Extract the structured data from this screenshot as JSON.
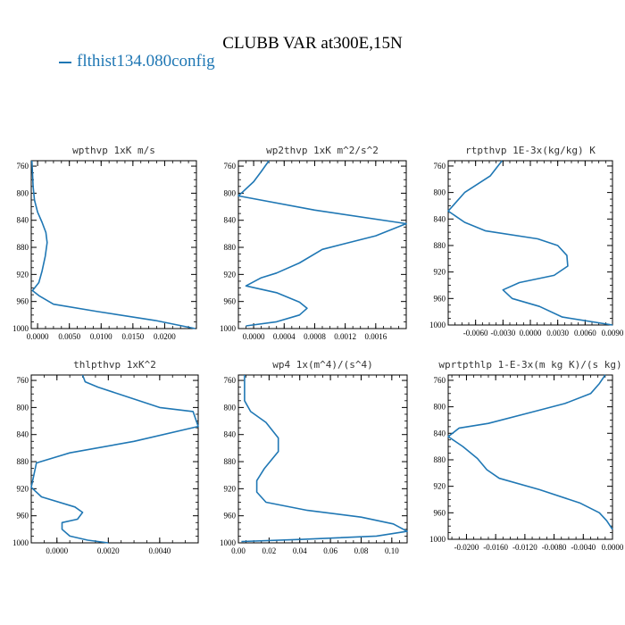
{
  "figure": {
    "title": "CLUBB VAR at300E,15N",
    "legend": "flthist134.080config",
    "line_color": "#1f77b4"
  },
  "chart_data": [
    {
      "type": "line",
      "title": "wpthvp  1xK m/s",
      "xlim": [
        -0.001,
        0.025
      ],
      "ylim": [
        1000,
        752
      ],
      "x_ticks": [
        0.0,
        0.005,
        0.01,
        0.015,
        0.02
      ],
      "x_tick_labels": [
        "0.0000",
        "0.0050",
        "0.0100",
        "0.0150",
        "0.0200"
      ],
      "y_ticks": [
        760,
        800,
        840,
        880,
        920,
        960,
        1000
      ],
      "series": [
        {
          "x": [
            -0.0009,
            -0.0008,
            -0.0007,
            -0.0005,
            0.0,
            0.0007,
            0.0013,
            0.0015,
            0.0012,
            0.0007,
            0.0002,
            -0.0008,
            0.0003,
            0.0025,
            0.0095,
            0.0185,
            0.0248
          ],
          "y": [
            752,
            770,
            790,
            810,
            828,
            843,
            858,
            873,
            893,
            915,
            932,
            944,
            952,
            964,
            975,
            988,
            1000
          ]
        }
      ]
    },
    {
      "type": "line",
      "title": "wp2thvp  1xK m^2/s^2",
      "xlim": [
        -0.0002,
        0.002
      ],
      "ylim": [
        1000,
        752
      ],
      "x_ticks": [
        0.0,
        0.0004,
        0.0008,
        0.0012,
        0.0016
      ],
      "x_tick_labels": [
        "0.0000",
        "0.0004",
        "0.0008",
        "0.0012",
        "0.0016"
      ],
      "y_ticks": [
        760,
        800,
        840,
        880,
        920,
        960,
        1000
      ],
      "series": [
        {
          "x": [
            0.0002,
            0.0001,
            0.0,
            -0.0002,
            0.0008,
            0.002,
            0.0016,
            0.0009,
            0.0006,
            0.0003,
            0.0001,
            -0.0001,
            0.0003,
            0.0006,
            0.0007,
            0.0006,
            0.0003,
            -0.0001
          ],
          "y": [
            752,
            768,
            783,
            804,
            825,
            845,
            863,
            883,
            903,
            918,
            925,
            937,
            947,
            961,
            970,
            980,
            990,
            996
          ]
        }
      ]
    },
    {
      "type": "line",
      "title": "rtpthvp  1E-3x(kg/kg) K",
      "xlim": [
        -0.009,
        0.009
      ],
      "ylim": [
        1000,
        752
      ],
      "x_ticks": [
        -0.006,
        -0.003,
        0.0,
        0.003,
        0.006,
        0.009
      ],
      "x_tick_labels": [
        "-0.0060",
        "-0.0030",
        "0.0000",
        "0.0030",
        "0.0060",
        "0.0090"
      ],
      "y_ticks": [
        760,
        800,
        840,
        880,
        920,
        960,
        1000
      ],
      "series": [
        {
          "x": [
            -0.0031,
            -0.0044,
            -0.0072,
            -0.009,
            -0.0072,
            -0.0049,
            0.0008,
            0.003,
            0.004,
            0.0041,
            0.0026,
            -0.0012,
            -0.003,
            -0.002,
            0.001,
            0.0035,
            0.009
          ],
          "y": [
            752,
            775,
            800,
            828,
            845,
            858,
            870,
            880,
            895,
            911,
            925,
            936,
            947,
            960,
            972,
            988,
            1000
          ]
        }
      ]
    },
    {
      "type": "line",
      "title": "thlpthvp  1xK^2",
      "xlim": [
        -0.001,
        0.0055
      ],
      "ylim": [
        1000,
        752
      ],
      "x_ticks": [
        0.0,
        0.002,
        0.004
      ],
      "x_tick_labels": [
        "0.0000",
        "0.0020",
        "0.0040"
      ],
      "y_ticks": [
        760,
        800,
        840,
        880,
        920,
        960,
        1000
      ],
      "series": [
        {
          "x": [
            0.001,
            0.0011,
            0.0016,
            0.0028,
            0.004,
            0.0053,
            0.0055,
            0.003,
            0.0005,
            -0.0008,
            -0.0009,
            -0.001,
            -0.0006,
            0.0007,
            0.001,
            0.0008,
            0.0002,
            0.0002,
            0.0005,
            0.0012,
            0.002
          ],
          "y": [
            752,
            762,
            770,
            785,
            800,
            806,
            828,
            850,
            867,
            882,
            900,
            918,
            932,
            947,
            955,
            965,
            970,
            980,
            990,
            996,
            1000
          ]
        }
      ]
    },
    {
      "type": "line",
      "title": "wp4  1x(m^4)/(s^4)",
      "xlim": [
        0.0,
        0.11
      ],
      "ylim": [
        1000,
        752
      ],
      "x_ticks": [
        0.0,
        0.02,
        0.04,
        0.06,
        0.08,
        0.1
      ],
      "x_tick_labels": [
        "0.00",
        "0.02",
        "0.04",
        "0.06",
        "0.08",
        "0.10"
      ],
      "y_ticks": [
        760,
        800,
        840,
        880,
        920,
        960,
        1000
      ],
      "series": [
        {
          "x": [
            0.004,
            0.004,
            0.004,
            0.008,
            0.018,
            0.026,
            0.026,
            0.017,
            0.012,
            0.012,
            0.018,
            0.045,
            0.08,
            0.101,
            0.11,
            0.09,
            0.04,
            0.002
          ],
          "y": [
            752,
            770,
            790,
            806,
            822,
            845,
            865,
            890,
            908,
            925,
            940,
            952,
            962,
            972,
            983,
            990,
            995,
            998
          ]
        }
      ]
    },
    {
      "type": "line",
      "title": "wprtpthlp  1-E-3x(m kg K)/(s kg)",
      "xlim": [
        -0.0225,
        0.0
      ],
      "ylim": [
        1000,
        752
      ],
      "x_ticks": [
        -0.02,
        -0.016,
        -0.012,
        -0.008,
        -0.004,
        0.0
      ],
      "x_tick_labels": [
        "-0.0200",
        "-0.0160",
        "-0.0120",
        "-0.0080",
        "-0.0040",
        "0.0000"
      ],
      "y_ticks": [
        760,
        800,
        840,
        880,
        920,
        960,
        1000
      ],
      "series": [
        {
          "x": [
            -0.001,
            -0.0018,
            -0.003,
            -0.0065,
            -0.011,
            -0.017,
            -0.021,
            -0.0225,
            -0.0205,
            -0.0185,
            -0.0172,
            -0.0155,
            -0.01,
            -0.0045,
            -0.0018,
            -0.0008,
            0.0
          ],
          "y": [
            752,
            765,
            780,
            795,
            808,
            825,
            832,
            845,
            860,
            878,
            895,
            908,
            925,
            945,
            960,
            972,
            985
          ]
        }
      ]
    }
  ]
}
